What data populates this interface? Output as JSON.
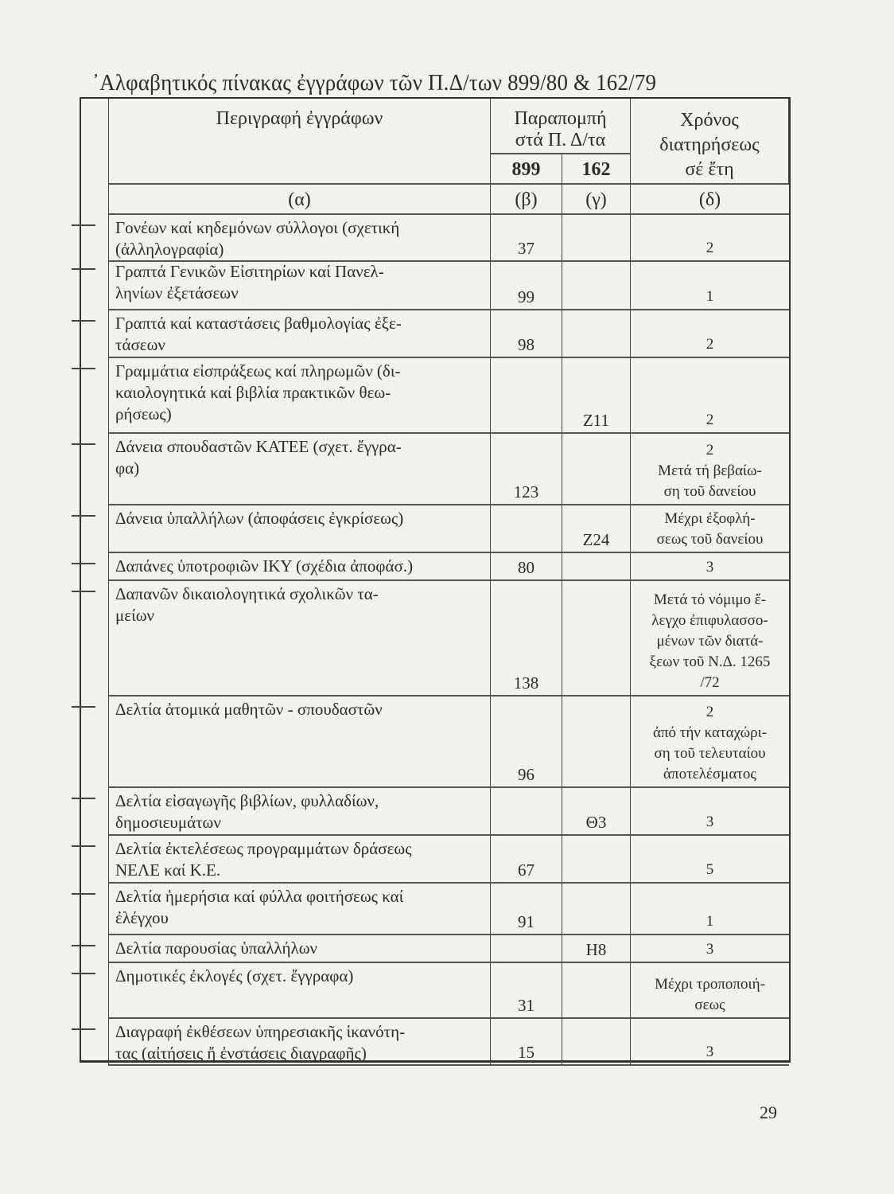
{
  "title": "᾿Αλφαβητικός πίνακας ἐγγράφων τῶν Π.Δ/των 899/80 & 162/79",
  "header": {
    "description": "Περιγραφή ἐγγράφων",
    "reference": "Παραπομπή\nστά Π. Δ/τα",
    "ref_899": "899",
    "ref_162": "162",
    "retention": "Χρόνος\nδιατηρήσεως\nσέ ἔτη",
    "col_a": "(α)",
    "col_b": "(β)",
    "col_c": "(γ)",
    "col_d": "(δ)"
  },
  "rows": [
    {
      "desc": "Γονέων καί κηδεμόνων σύλλογοι (σχετική\n(ἀλληλογραφία)",
      "p899": "37",
      "p162": "",
      "years": "2"
    },
    {
      "desc": "Γραπτά Γενικῶν Εἰσιτηρίων καί Πανελ-\nληνίων ἐξετάσεων",
      "p899": "99",
      "p162": "",
      "years": "1"
    },
    {
      "desc": "Γραπτά καί καταστάσεις βαθμολογίας ἐξε-\nτάσεων",
      "p899": "98",
      "p162": "",
      "years": "2"
    },
    {
      "desc": "Γραμμάτια εἰσπράξεως καί πληρωμῶν (δι-\nκαιολογητικά καί βιβλία πρακτικῶν θεω-\nρήσεως)",
      "p899": "",
      "p162": "Z11",
      "years": "2"
    },
    {
      "desc": "Δάνεια σπουδαστῶν ΚΑΤΕΕ (σχετ. ἔγγρα-\nφα)",
      "p899": "123",
      "p162": "",
      "years": "2\nΜετά τή βεβαίω-\nση τοῦ δανείου"
    },
    {
      "desc": "Δάνεια ὑπαλλήλων (ἀποφάσεις ἐγκρίσεως)",
      "p899": "",
      "p162": "Z24",
      "years": "Μέχρι ἐξοφλή-\nσεως τοῦ δανείου"
    },
    {
      "desc": "Δαπάνες ὑποτροφιῶν ΙΚΥ (σχέδια ἀποφάσ.)",
      "p899": "80",
      "p162": "",
      "years": "3"
    },
    {
      "desc": "Δαπανῶν δικαιολογητικά σχολικῶν τα-\nμείων",
      "p899": "138",
      "p162": "",
      "years": "Μετά τό νόμιμο ἔ-\nλεγχο ἐπιφυλασσο-\nμένων τῶν διατά-\nξεων τοῦ Ν.Δ. 1265\n/72"
    },
    {
      "desc": "Δελτία ἀτομικά μαθητῶν - σπουδαστῶν",
      "p899": "96",
      "p162": "",
      "years": "2\nἀπό τήν καταχώρι-\nση τοῦ τελευταίου\nἀποτελέσματος"
    },
    {
      "desc": "Δελτία εἰσαγωγῆς βιβλίων, φυλλαδίων,\nδημοσιευμάτων",
      "p899": "",
      "p162": "Θ3",
      "years": "3"
    },
    {
      "desc": "Δελτία ἐκτελέσεως προγραμμάτων δράσεως\nΝΕΛΕ καί Κ.Ε.",
      "p899": "67",
      "p162": "",
      "years": "5"
    },
    {
      "desc": "Δελτία ἡμερήσια καί φύλλα φοιτήσεως καί\nἐλέγχου",
      "p899": "91",
      "p162": "",
      "years": "1"
    },
    {
      "desc": "Δελτία παρουσίας ὑπαλλήλων",
      "p899": "",
      "p162": "H8",
      "years": "3"
    },
    {
      "desc": "Δημοτικές ἐκλογές (σχετ. ἔγγραφα)",
      "p899": "31",
      "p162": "",
      "years": "Μέχρι τροποποιή-\nσεως"
    },
    {
      "desc": "Διαγραφή ἐκθέσεων ὑπηρεσιακῆς ἱκανότη-\nτας (αἰτήσεις ἤ ἐνστάσεις διαγραφῆς)",
      "p899": "15",
      "p162": "",
      "years": "3"
    }
  ],
  "page_number": "29"
}
